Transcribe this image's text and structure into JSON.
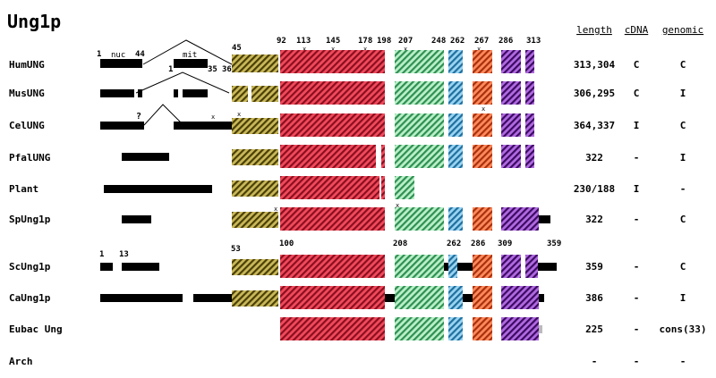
{
  "title": "Ung1p",
  "headers": {
    "length": "length",
    "cdna": "cDNA",
    "genomic": "genomic"
  },
  "colors": {
    "black": "#000000",
    "olive": "#8b7a1a",
    "red": "#d9283c",
    "green": "#6fcf8f",
    "blue": "#3fa4d8",
    "orange": "#e8572a",
    "purple": "#7a2aa8"
  },
  "rows": [
    {
      "name": "HumUNG",
      "length": "313,304",
      "cdna": "C",
      "genomic": "C"
    },
    {
      "name": "MusUNG",
      "length": "306,295",
      "cdna": "C",
      "genomic": "I"
    },
    {
      "name": "CelUNG",
      "length": "364,337",
      "cdna": "I",
      "genomic": "C"
    },
    {
      "name": "PfalUNG",
      "length": "322",
      "cdna": "-",
      "genomic": "I"
    },
    {
      "name": "Plant",
      "length": "230/188",
      "cdna": "I",
      "genomic": "-"
    },
    {
      "name": "SpUng1p",
      "length": "322",
      "cdna": "-",
      "genomic": "C"
    },
    {
      "name": "ScUng1p",
      "length": "359",
      "cdna": "-",
      "genomic": "C"
    },
    {
      "name": "CaUng1p",
      "length": "386",
      "cdna": "-",
      "genomic": "I"
    },
    {
      "name": "Eubac Ung",
      "length": "225",
      "cdna": "-",
      "genomic": "cons(33)"
    },
    {
      "name": "Arch",
      "length": "-",
      "cdna": "-",
      "genomic": "-"
    }
  ],
  "labels": {
    "nuc": "nuc",
    "mit": "mit",
    "q": "?",
    "x": "x",
    "n1": "1",
    "n44": "44",
    "n1b": "1",
    "n35": "35",
    "n36": "36",
    "n45": "45",
    "n92": "92",
    "n113": "113",
    "n145": "145",
    "n178": "178",
    "n198": "198",
    "n207": "207",
    "n248": "248",
    "n262": "262",
    "n267": "267",
    "n286": "286",
    "n313": "313",
    "s1": "1",
    "s13": "13",
    "s53": "53",
    "s100": "100",
    "s208": "208",
    "s262": "262",
    "s286": "286",
    "s309": "309",
    "s359": "359"
  }
}
